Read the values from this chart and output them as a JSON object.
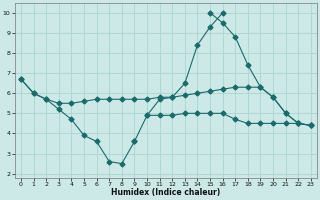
{
  "xlabel": "Humidex (Indice chaleur)",
  "x_values": [
    0,
    1,
    2,
    3,
    4,
    5,
    6,
    7,
    8,
    9,
    10,
    11,
    12,
    13,
    14,
    15,
    16,
    17,
    18,
    19,
    20,
    21,
    22,
    23
  ],
  "line1": [
    6.7,
    6.0,
    5.7,
    5.2,
    4.7,
    3.9,
    3.6,
    2.6,
    2.5,
    3.6,
    null,
    null,
    null,
    null,
    null,
    null,
    null,
    null,
    null,
    null,
    null,
    null,
    null,
    null
  ],
  "line2": [
    null,
    null,
    null,
    null,
    null,
    null,
    null,
    null,
    null,
    3.6,
    4.9,
    5.7,
    5.8,
    6.5,
    8.4,
    9.3,
    10.0,
    null,
    null,
    null,
    null,
    null,
    null,
    null
  ],
  "line3": [
    null,
    null,
    null,
    null,
    null,
    null,
    null,
    null,
    null,
    null,
    null,
    null,
    null,
    null,
    null,
    10.0,
    9.5,
    8.8,
    7.4,
    6.3,
    5.8,
    5.0,
    4.5,
    4.4
  ],
  "line4": [
    6.7,
    6.0,
    5.7,
    5.5,
    5.5,
    5.6,
    5.7,
    5.7,
    5.7,
    5.7,
    5.7,
    5.8,
    5.8,
    5.9,
    6.0,
    6.1,
    6.2,
    6.3,
    6.3,
    6.3,
    5.8,
    5.0,
    4.5,
    4.4
  ],
  "line5": [
    null,
    null,
    null,
    null,
    null,
    null,
    null,
    null,
    null,
    null,
    4.9,
    4.9,
    4.9,
    5.0,
    5.0,
    5.0,
    5.0,
    4.7,
    4.5,
    4.5,
    4.5,
    4.5,
    4.5,
    4.4
  ],
  "bg_color": "#cce9e7",
  "grid_color": "#aad4d1",
  "line_color": "#1a6b6b",
  "ylim": [
    1.8,
    10.5
  ],
  "xlim": [
    -0.5,
    23.5
  ],
  "yticks": [
    2,
    3,
    4,
    5,
    6,
    7,
    8,
    9,
    10
  ],
  "xticks": [
    0,
    1,
    2,
    3,
    4,
    5,
    6,
    7,
    8,
    9,
    10,
    11,
    12,
    13,
    14,
    15,
    16,
    17,
    18,
    19,
    20,
    21,
    22,
    23
  ]
}
